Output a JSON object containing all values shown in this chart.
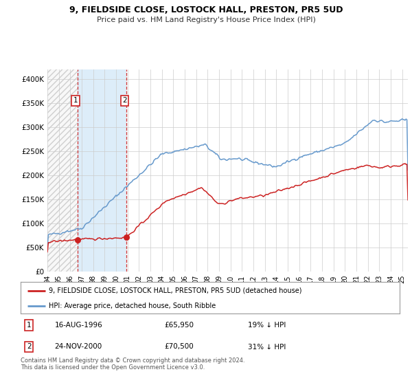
{
  "title": "9, FIELDSIDE CLOSE, LOSTOCK HALL, PRESTON, PR5 5UD",
  "subtitle": "Price paid vs. HM Land Registry's House Price Index (HPI)",
  "xlim": [
    1994.0,
    2025.5
  ],
  "ylim": [
    0,
    420000
  ],
  "yticks": [
    0,
    50000,
    100000,
    150000,
    200000,
    250000,
    300000,
    350000,
    400000
  ],
  "ytick_labels": [
    "£0",
    "£50K",
    "£100K",
    "£150K",
    "£200K",
    "£250K",
    "£300K",
    "£350K",
    "£400K"
  ],
  "xticks": [
    1994,
    1995,
    1996,
    1997,
    1998,
    1999,
    2000,
    2001,
    2002,
    2003,
    2004,
    2005,
    2006,
    2007,
    2008,
    2009,
    2010,
    2011,
    2012,
    2013,
    2014,
    2015,
    2016,
    2017,
    2018,
    2019,
    2020,
    2021,
    2022,
    2023,
    2024,
    2025
  ],
  "transaction1_date": 1996.62,
  "transaction1_price": 65950,
  "transaction2_date": 2000.9,
  "transaction2_price": 70500,
  "shaded_region_start": 1996.62,
  "shaded_region_end": 2000.9,
  "hpi_color": "#6699cc",
  "price_color": "#cc2222",
  "bg_color": "#ffffff",
  "grid_color": "#cccccc",
  "legend_label_price": "9, FIELDSIDE CLOSE, LOSTOCK HALL, PRESTON, PR5 5UD (detached house)",
  "legend_label_hpi": "HPI: Average price, detached house, South Ribble",
  "annotation1_date": "16-AUG-1996",
  "annotation1_price": "£65,950",
  "annotation1_hpi": "19% ↓ HPI",
  "annotation2_date": "24-NOV-2000",
  "annotation2_price": "£70,500",
  "annotation2_hpi": "31% ↓ HPI",
  "footer": "Contains HM Land Registry data © Crown copyright and database right 2024.\nThis data is licensed under the Open Government Licence v3.0."
}
